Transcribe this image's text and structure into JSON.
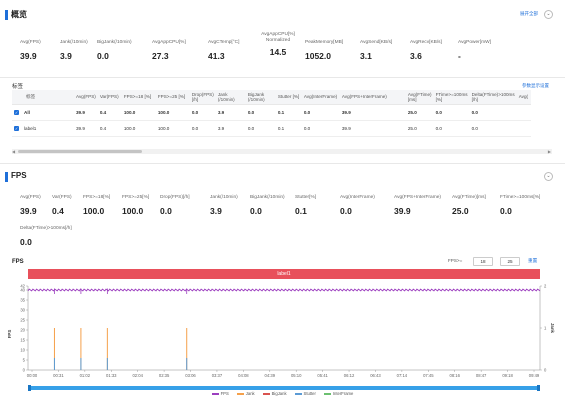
{
  "overview": {
    "title": "概览",
    "expand_link": "展开全部",
    "metrics": [
      {
        "label": "Avg(FPS)",
        "value": "39.9",
        "help": false
      },
      {
        "label": "Jank(/10min)",
        "value": "3.9",
        "help": true
      },
      {
        "label": "BigJank(/10min)",
        "value": "0.0",
        "help": true
      },
      {
        "label": "AvgAppCPU[%]",
        "value": "27.3",
        "help": true
      },
      {
        "label": "AvgCTemp[°C]",
        "value": "41.3",
        "help": true
      },
      {
        "label": "AvgAppCPU[%] Normalized",
        "value": "14.5",
        "help": true
      },
      {
        "label": "PeakMemory[MB]",
        "value": "1052.0",
        "help": false
      },
      {
        "label": "AvgSend[KB/s]",
        "value": "3.1",
        "help": false
      },
      {
        "label": "AvgRecv[KB/s]",
        "value": "3.6",
        "help": false
      },
      {
        "label": "AvgPower[mW]",
        "value": "-",
        "help": true
      }
    ]
  },
  "tags_table": {
    "label": "标签",
    "settings_link": "参数显示设置",
    "columns": [
      "标签",
      "Avg(FPS)",
      "Var(FPS)",
      "FPS>=18 [%]",
      "FPS>=25 [%]",
      "Drop(FPS) [/h]",
      "Jank (/10min)",
      "BigJank (/10min)",
      "Stutter [%]",
      "Avg(InterFrame)",
      "Avg(FPS+InterFrame)",
      "Avg(FTime) [ms]",
      "FTime>=100ms [%]",
      "Delta(FTime)>100ms [/h]",
      "Avg("
    ],
    "rows": [
      {
        "name": "All",
        "checked": true,
        "cells": [
          "39.9",
          "0.4",
          "100.0",
          "100.0",
          "0.0",
          "3.9",
          "0.0",
          "0.1",
          "0.0",
          "39.9",
          "25.0",
          "0.0",
          "0.0",
          ""
        ]
      },
      {
        "name": "label1",
        "checked": true,
        "cells": [
          "39.9",
          "0.4",
          "100.0",
          "100.0",
          "0.0",
          "3.9",
          "0.0",
          "0.1",
          "0.0",
          "39.9",
          "25.0",
          "0.0",
          "0.0",
          ""
        ]
      }
    ]
  },
  "fps_section": {
    "title": "FPS",
    "metrics": [
      {
        "label": "Avg(FPS)",
        "value": "39.9"
      },
      {
        "label": "Var(FPS)",
        "value": "0.4"
      },
      {
        "label": "FPS>=18[%]",
        "value": "100.0"
      },
      {
        "label": "FPS>=25[%]",
        "value": "100.0"
      },
      {
        "label": "Drop(FPS)[/h]",
        "value": "0.0"
      },
      {
        "label": "Jank(/10min)",
        "value": "3.9"
      },
      {
        "label": "BigJank(/10min)",
        "value": "0.0"
      },
      {
        "label": "Stutter[%]",
        "value": "0.1"
      },
      {
        "label": "Avg(InterFrame)",
        "value": "0.0"
      },
      {
        "label": "Avg(FPS+InterFrame)",
        "value": "39.9"
      },
      {
        "label": "Avg(FTime)[ms]",
        "value": "25.0"
      },
      {
        "label": "FTime>=100ms[%]",
        "value": "0.0"
      }
    ],
    "extra_metric": {
      "label": "Delta(FTime)>100ms[/h]",
      "value": "0.0"
    }
  },
  "chart_controls": {
    "title": "FPS",
    "fps_filter_label": "FPS>=",
    "fps_value_1": "18",
    "fps_value_2": "25",
    "reset": "重置",
    "label_band": "label1"
  },
  "chart_data": {
    "type": "line",
    "ylabel_left": "FPS",
    "ylabel_right": "Jank",
    "y_left_ticks": [
      "0",
      "5",
      "10",
      "15",
      "20",
      "25",
      "30",
      "35",
      "40",
      "42"
    ],
    "y_right_ticks": [
      "0",
      "1",
      "2"
    ],
    "x_ticks": [
      "00:00",
      "00:31",
      "01:02",
      "01:33",
      "02:04",
      "02:35",
      "03:06",
      "03:37",
      "04:08",
      "04:39",
      "05:10",
      "05:41",
      "06:12",
      "06:43",
      "07:14",
      "07:45",
      "08:16",
      "08:47",
      "09:18",
      "09:49"
    ],
    "x_range_seconds": [
      0,
      600
    ],
    "fps_level": 40,
    "jank_events_seconds": [
      31,
      62,
      93,
      186
    ],
    "jank_height": 1,
    "legend": [
      "FPS",
      "Jank",
      "BigJank",
      "Stutter",
      "InterFrame"
    ],
    "colors": {
      "FPS": "#9c3fbf",
      "Jank": "#f5a04a",
      "BigJank": "#d9534f",
      "Stutter": "#5b9bd5",
      "InterFrame": "#6cc070"
    }
  }
}
